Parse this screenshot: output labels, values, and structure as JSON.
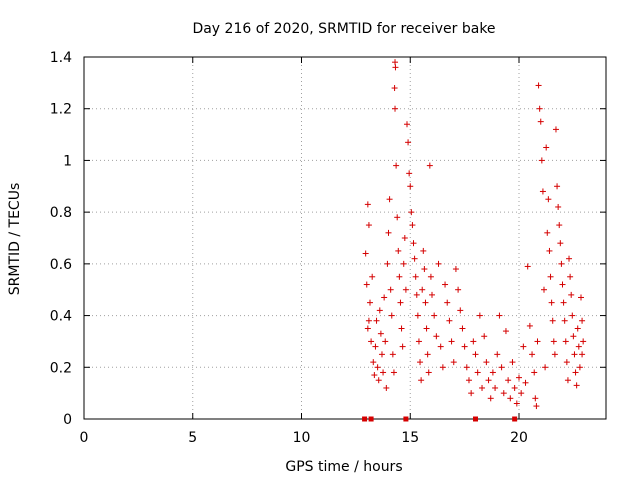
{
  "chart_data": {
    "type": "scatter",
    "title": "Day 216 of 2020, SRMTID for receiver bake",
    "xlabel": "GPS time / hours",
    "ylabel": "SRMTID / TECUs",
    "xlim": [
      0,
      24
    ],
    "ylim": [
      0,
      1.4
    ],
    "xticks": [
      "0",
      "5",
      "10",
      "15",
      "20"
    ],
    "yticks": [
      "0",
      "0.2",
      "0.4",
      "0.6",
      "0.8",
      "1",
      "1.2",
      "1.4"
    ],
    "grid": true,
    "marker": "plus",
    "color": "#d40000",
    "zero_markers_x": [
      12.9,
      13.2,
      14.8,
      18.0,
      19.8
    ],
    "series": [
      {
        "name": "SRMTID",
        "points": [
          [
            12.95,
            0.64
          ],
          [
            13.0,
            0.52
          ],
          [
            13.05,
            0.83
          ],
          [
            13.1,
            0.75
          ],
          [
            13.15,
            0.45
          ],
          [
            13.1,
            0.38
          ],
          [
            13.2,
            0.3
          ],
          [
            13.05,
            0.35
          ],
          [
            13.25,
            0.55
          ],
          [
            13.3,
            0.22
          ],
          [
            13.35,
            0.17
          ],
          [
            13.4,
            0.28
          ],
          [
            13.45,
            0.38
          ],
          [
            13.5,
            0.2
          ],
          [
            13.55,
            0.15
          ],
          [
            13.6,
            0.42
          ],
          [
            13.65,
            0.33
          ],
          [
            13.7,
            0.25
          ],
          [
            13.75,
            0.18
          ],
          [
            13.8,
            0.47
          ],
          [
            13.85,
            0.3
          ],
          [
            13.9,
            0.12
          ],
          [
            13.95,
            0.6
          ],
          [
            14.0,
            0.72
          ],
          [
            14.05,
            0.85
          ],
          [
            14.1,
            0.5
          ],
          [
            14.15,
            0.4
          ],
          [
            14.2,
            0.25
          ],
          [
            14.25,
            0.18
          ],
          [
            14.3,
            1.38
          ],
          [
            14.32,
            1.36
          ],
          [
            14.28,
            1.28
          ],
          [
            14.3,
            1.2
          ],
          [
            14.35,
            0.98
          ],
          [
            14.4,
            0.78
          ],
          [
            14.45,
            0.65
          ],
          [
            14.5,
            0.55
          ],
          [
            14.55,
            0.45
          ],
          [
            14.6,
            0.35
          ],
          [
            14.65,
            0.28
          ],
          [
            14.7,
            0.6
          ],
          [
            14.75,
            0.7
          ],
          [
            14.8,
            0.5
          ],
          [
            14.85,
            1.14
          ],
          [
            14.9,
            1.07
          ],
          [
            14.95,
            0.95
          ],
          [
            15.0,
            0.9
          ],
          [
            15.05,
            0.8
          ],
          [
            15.1,
            0.75
          ],
          [
            15.15,
            0.68
          ],
          [
            15.2,
            0.62
          ],
          [
            15.25,
            0.55
          ],
          [
            15.3,
            0.48
          ],
          [
            15.35,
            0.4
          ],
          [
            15.4,
            0.3
          ],
          [
            15.45,
            0.22
          ],
          [
            15.5,
            0.15
          ],
          [
            15.55,
            0.5
          ],
          [
            15.6,
            0.65
          ],
          [
            15.65,
            0.58
          ],
          [
            15.7,
            0.45
          ],
          [
            15.75,
            0.35
          ],
          [
            15.8,
            0.25
          ],
          [
            15.85,
            0.18
          ],
          [
            15.9,
            0.98
          ],
          [
            15.95,
            0.55
          ],
          [
            16.0,
            0.48
          ],
          [
            16.1,
            0.4
          ],
          [
            16.2,
            0.32
          ],
          [
            16.3,
            0.6
          ],
          [
            16.4,
            0.28
          ],
          [
            16.5,
            0.2
          ],
          [
            16.6,
            0.52
          ],
          [
            16.7,
            0.45
          ],
          [
            16.8,
            0.38
          ],
          [
            16.9,
            0.3
          ],
          [
            17.0,
            0.22
          ],
          [
            17.1,
            0.58
          ],
          [
            17.2,
            0.5
          ],
          [
            17.3,
            0.42
          ],
          [
            17.4,
            0.35
          ],
          [
            17.5,
            0.28
          ],
          [
            17.6,
            0.2
          ],
          [
            17.7,
            0.15
          ],
          [
            17.8,
            0.1
          ],
          [
            17.9,
            0.3
          ],
          [
            18.0,
            0.25
          ],
          [
            18.1,
            0.18
          ],
          [
            18.2,
            0.4
          ],
          [
            18.3,
            0.12
          ],
          [
            18.4,
            0.32
          ],
          [
            18.5,
            0.22
          ],
          [
            18.6,
            0.15
          ],
          [
            18.7,
            0.08
          ],
          [
            18.8,
            0.18
          ],
          [
            18.9,
            0.12
          ],
          [
            19.0,
            0.25
          ],
          [
            19.1,
            0.4
          ],
          [
            19.2,
            0.2
          ],
          [
            19.3,
            0.1
          ],
          [
            19.4,
            0.34
          ],
          [
            19.5,
            0.15
          ],
          [
            19.6,
            0.08
          ],
          [
            19.7,
            0.22
          ],
          [
            19.8,
            0.12
          ],
          [
            19.9,
            0.06
          ],
          [
            20.0,
            0.16
          ],
          [
            20.1,
            0.1
          ],
          [
            20.2,
            0.28
          ],
          [
            20.3,
            0.14
          ],
          [
            20.4,
            0.59
          ],
          [
            20.5,
            0.36
          ],
          [
            20.6,
            0.25
          ],
          [
            20.7,
            0.18
          ],
          [
            20.75,
            0.08
          ],
          [
            20.8,
            0.05
          ],
          [
            20.85,
            0.3
          ],
          [
            20.9,
            1.29
          ],
          [
            20.95,
            1.2
          ],
          [
            21.0,
            1.15
          ],
          [
            21.05,
            1.0
          ],
          [
            21.1,
            0.88
          ],
          [
            21.15,
            0.5
          ],
          [
            21.2,
            0.2
          ],
          [
            21.25,
            1.05
          ],
          [
            21.3,
            0.72
          ],
          [
            21.35,
            0.85
          ],
          [
            21.4,
            0.65
          ],
          [
            21.45,
            0.55
          ],
          [
            21.5,
            0.45
          ],
          [
            21.55,
            0.38
          ],
          [
            21.6,
            0.3
          ],
          [
            21.65,
            0.25
          ],
          [
            21.7,
            1.12
          ],
          [
            21.75,
            0.9
          ],
          [
            21.8,
            0.82
          ],
          [
            21.85,
            0.75
          ],
          [
            21.9,
            0.68
          ],
          [
            21.95,
            0.6
          ],
          [
            22.0,
            0.52
          ],
          [
            22.05,
            0.45
          ],
          [
            22.1,
            0.38
          ],
          [
            22.15,
            0.3
          ],
          [
            22.2,
            0.22
          ],
          [
            22.25,
            0.15
          ],
          [
            22.3,
            0.62
          ],
          [
            22.35,
            0.55
          ],
          [
            22.4,
            0.48
          ],
          [
            22.45,
            0.4
          ],
          [
            22.5,
            0.32
          ],
          [
            22.55,
            0.25
          ],
          [
            22.6,
            0.18
          ],
          [
            22.65,
            0.13
          ],
          [
            22.7,
            0.35
          ],
          [
            22.75,
            0.28
          ],
          [
            22.8,
            0.2
          ],
          [
            22.85,
            0.47
          ],
          [
            22.9,
            0.38
          ],
          [
            22.95,
            0.3
          ],
          [
            22.9,
            0.25
          ]
        ]
      }
    ]
  }
}
